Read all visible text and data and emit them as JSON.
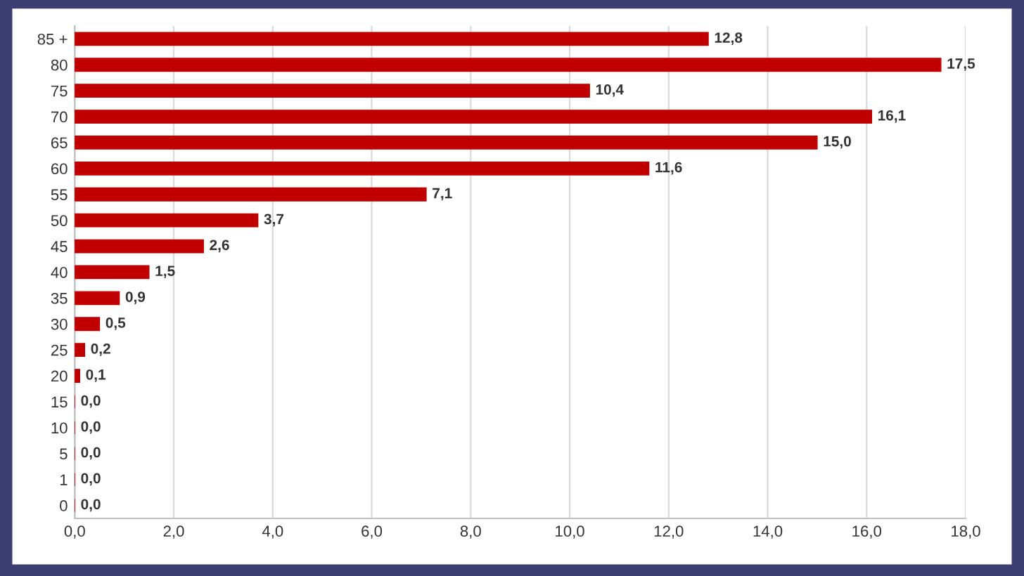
{
  "chart_data": {
    "type": "bar",
    "orientation": "horizontal",
    "categories": [
      "85 +",
      "80",
      "75",
      "70",
      "65",
      "60",
      "55",
      "50",
      "45",
      "40",
      "35",
      "30",
      "25",
      "20",
      "15",
      "10",
      "5",
      "1",
      "0"
    ],
    "values": [
      12.8,
      17.5,
      10.4,
      16.1,
      15.0,
      11.6,
      7.1,
      3.7,
      2.6,
      1.5,
      0.9,
      0.5,
      0.2,
      0.1,
      0.0,
      0.0,
      0.0,
      0.0,
      0.0
    ],
    "value_labels": [
      "12,8",
      "17,5",
      "10,4",
      "16,1",
      "15,0",
      "11,6",
      "7,1",
      "3,7",
      "2,6",
      "1,5",
      "0,9",
      "0,5",
      "0,2",
      "0,1",
      "0,0",
      "0,0",
      "0,0",
      "0,0",
      "0,0"
    ],
    "color": "#c00000",
    "xlim": [
      0,
      18
    ],
    "xticks": [
      {
        "value": 0,
        "label": "0,0"
      },
      {
        "value": 2,
        "label": "2,0"
      },
      {
        "value": 4,
        "label": "4,0"
      },
      {
        "value": 6,
        "label": "6,0"
      },
      {
        "value": 8,
        "label": "8,0"
      },
      {
        "value": 10,
        "label": "10,0"
      },
      {
        "value": 12,
        "label": "12,0"
      },
      {
        "value": 14,
        "label": "14,0"
      },
      {
        "value": 16,
        "label": "16,0"
      },
      {
        "value": 18,
        "label": "18,0"
      }
    ],
    "grid": "x",
    "legend": false
  }
}
